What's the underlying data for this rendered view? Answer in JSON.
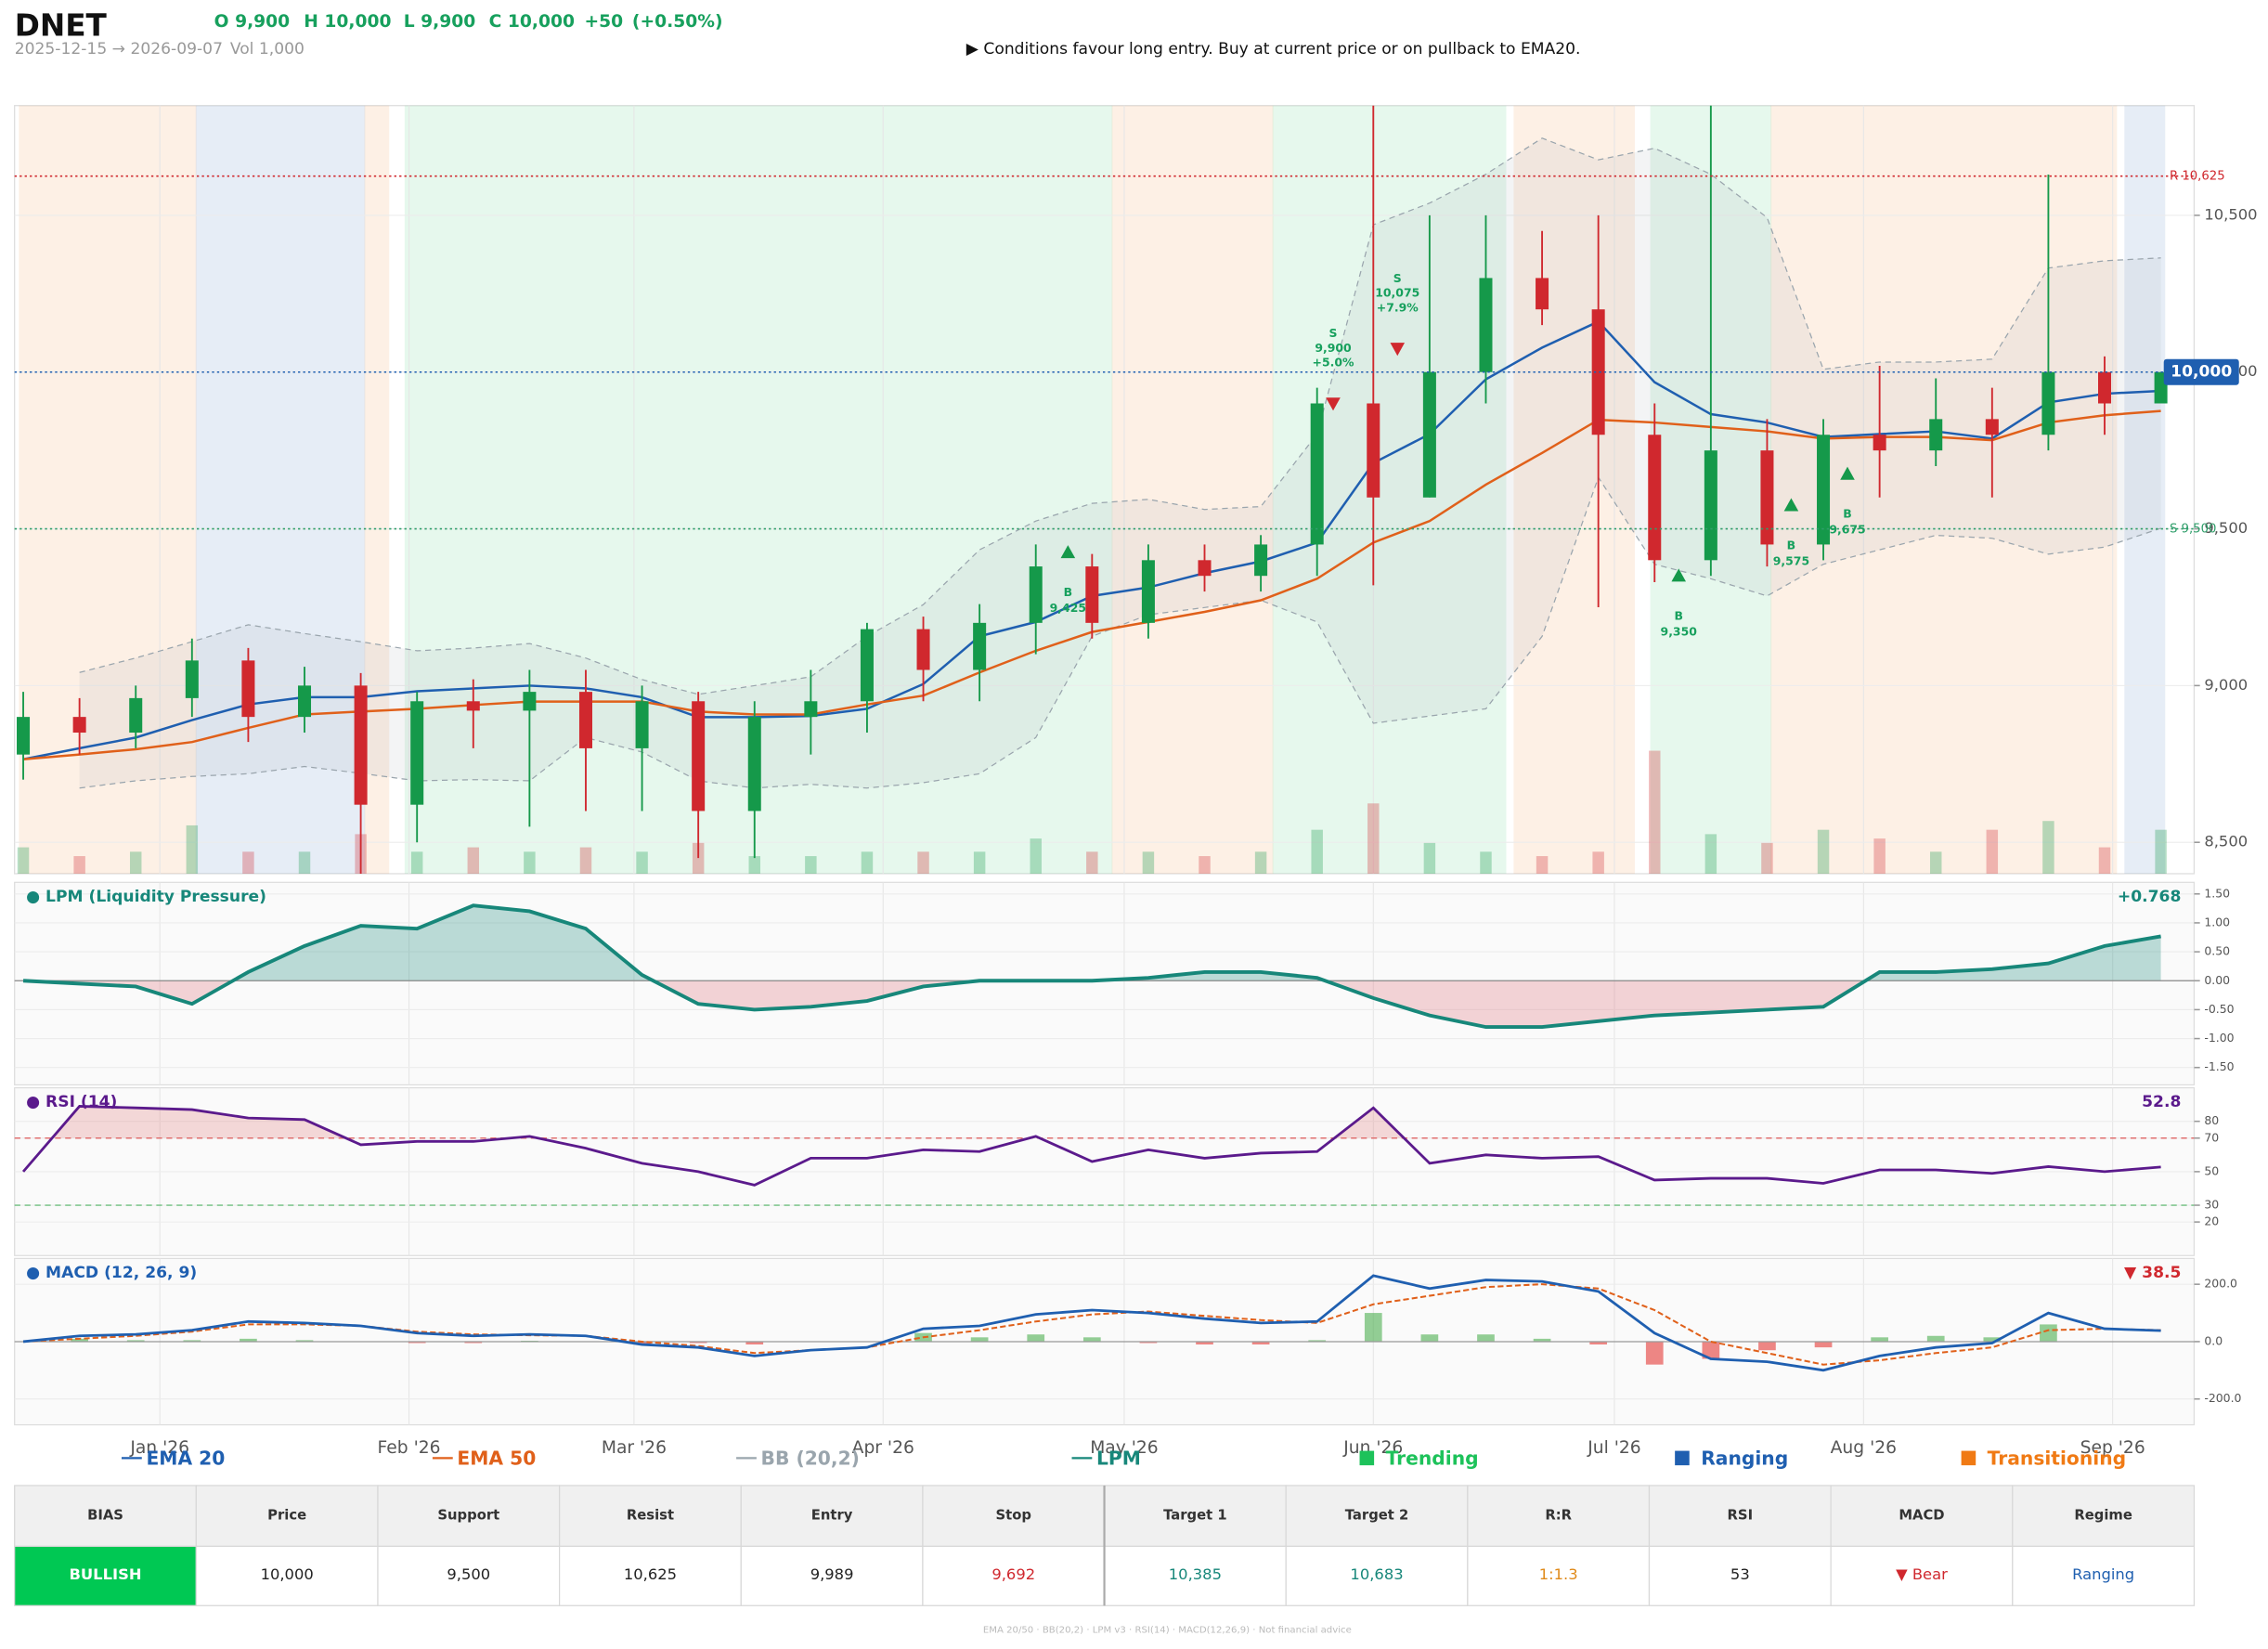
{
  "header": {
    "title": "DNET",
    "ohlc": [
      "O 9,900",
      "H 10,000",
      "L 9,900",
      "C 10,000",
      "+50",
      "(+0.50%)"
    ],
    "range": "2025-12-15 → 2026-09-07",
    "volume": "Vol 1,000",
    "note": "▶  Conditions favour long entry. Buy at current price or on pullback to EMA20."
  },
  "chart_data": [
    {
      "type": "candlestick",
      "xlim": [
        "2025-12-15",
        "2026-09-07"
      ],
      "xticks": [
        {
          "value": "2026-01-01",
          "label": "Jan '26"
        },
        {
          "value": "2026-02-01",
          "label": "Feb '26"
        },
        {
          "value": "2026-03-01",
          "label": "Mar '26"
        },
        {
          "value": "2026-04-01",
          "label": "Apr '26"
        },
        {
          "value": "2026-05-01",
          "label": "May '26"
        },
        {
          "value": "2026-06-01",
          "label": "Jun '26"
        },
        {
          "value": "2026-07-01",
          "label": "Jul '26"
        },
        {
          "value": "2026-08-01",
          "label": "Aug '26"
        },
        {
          "value": "2026-09-01",
          "label": "Sep '26"
        }
      ],
      "ylim": [
        8400,
        10850
      ],
      "yticks": [
        {
          "value": 8500,
          "label": "8,500"
        },
        {
          "value": 9000,
          "label": "9,000"
        },
        {
          "value": 9500,
          "label": "9,500"
        },
        {
          "value": 10000,
          "label": "10,000"
        },
        {
          "value": 10500,
          "label": "10,500"
        }
      ],
      "grid": true,
      "up_color": "#15994a",
      "down_color": "#d0282e",
      "x": [
        "2025-12-15",
        "2025-12-22",
        "2025-12-29",
        "2026-01-05",
        "2026-01-12",
        "2026-01-19",
        "2026-01-26",
        "2026-02-02",
        "2026-02-09",
        "2026-02-16",
        "2026-02-23",
        "2026-03-02",
        "2026-03-09",
        "2026-03-16",
        "2026-03-23",
        "2026-03-30",
        "2026-04-06",
        "2026-04-13",
        "2026-04-20",
        "2026-04-27",
        "2026-05-04",
        "2026-05-11",
        "2026-05-18",
        "2026-05-25",
        "2026-06-01",
        "2026-06-08",
        "2026-06-15",
        "2026-06-22",
        "2026-06-29",
        "2026-07-06",
        "2026-07-13",
        "2026-07-20",
        "2026-07-27",
        "2026-08-03",
        "2026-08-10",
        "2026-08-17",
        "2026-08-24",
        "2026-08-31",
        "2026-09-07"
      ],
      "open": [
        8780,
        8900,
        8850,
        8960,
        9080,
        8900,
        9000,
        8620,
        8950,
        8920,
        8980,
        8800,
        8950,
        8600,
        8900,
        8950,
        9180,
        9050,
        9200,
        9380,
        9200,
        9400,
        9350,
        9450,
        9900,
        9600,
        10000,
        10300,
        10200,
        9800,
        9400,
        9750,
        9450,
        9800,
        9750,
        9850,
        9800,
        10000,
        9900
      ],
      "high": [
        8980,
        8960,
        9000,
        9150,
        9120,
        9060,
        9040,
        8980,
        9020,
        9050,
        9050,
        9000,
        8980,
        8950,
        9050,
        9200,
        9220,
        9260,
        9450,
        9420,
        9450,
        9450,
        9480,
        9950,
        10850,
        10500,
        10500,
        10450,
        10500,
        9900,
        10850,
        9850,
        9850,
        10020,
        9980,
        9950,
        10630,
        10050,
        10000
      ],
      "low": [
        8700,
        8780,
        8800,
        8900,
        8820,
        8850,
        8400,
        8500,
        8800,
        8550,
        8600,
        8600,
        8450,
        8450,
        8780,
        8850,
        8950,
        8950,
        9100,
        9150,
        9150,
        9300,
        9300,
        9350,
        9320,
        9600,
        9900,
        10150,
        9250,
        9330,
        9350,
        9380,
        9400,
        9600,
        9700,
        9600,
        9750,
        9800,
        9900
      ],
      "close": [
        8900,
        8850,
        8960,
        9080,
        8900,
        9000,
        8620,
        8950,
        8920,
        8980,
        8800,
        8950,
        8600,
        8900,
        8950,
        9180,
        9050,
        9200,
        9380,
        9200,
        9400,
        9350,
        9450,
        9900,
        9600,
        10000,
        10300,
        10200,
        9800,
        9400,
        9750,
        9450,
        9800,
        9750,
        9850,
        9800,
        10000,
        9900,
        10000
      ],
      "volume": [
        600,
        400,
        500,
        1100,
        500,
        500,
        900,
        500,
        600,
        500,
        600,
        500,
        700,
        400,
        400,
        500,
        500,
        500,
        800,
        500,
        500,
        400,
        500,
        1000,
        1600,
        700,
        500,
        400,
        500,
        2800,
        900,
        700,
        1000,
        800,
        500,
        1000,
        1200,
        600,
        1000
      ],
      "series": [
        {
          "name": "EMA 20",
          "color": "#1f5fb0",
          "values": [
            8765,
            8800,
            8834,
            8890,
            8940,
            8963,
            8963,
            8982,
            8991,
            9000,
            8991,
            8963,
            8899,
            8899,
            8903,
            8926,
            9005,
            9157,
            9203,
            9286,
            9313,
            9359,
            9396,
            9456,
            9710,
            9802,
            9977,
            10078,
            10161,
            9968,
            9866,
            9839,
            9793,
            9802,
            9811,
            9788,
            9903,
            9931,
            9940
          ]
        },
        {
          "name": "EMA 50",
          "color": "#e0601a",
          "values": [
            8765,
            8780,
            8797,
            8820,
            8865,
            8908,
            8917,
            8926,
            8938,
            8949,
            8949,
            8949,
            8917,
            8908,
            8908,
            8940,
            8968,
            9042,
            9111,
            9171,
            9203,
            9235,
            9272,
            9341,
            9456,
            9525,
            9641,
            9742,
            9848,
            9839,
            9825,
            9811,
            9788,
            9793,
            9793,
            9783,
            9839,
            9862,
            9876
          ]
        }
      ],
      "bands": {
        "name": "BB (20,2)",
        "color": "#9aa5ad",
        "upper": [
          null,
          9042,
          9088,
          9140,
          9194,
          9166,
          9140,
          9111,
          9120,
          9134,
          9088,
          9019,
          8972,
          9000,
          9028,
          9157,
          9258,
          9433,
          9525,
          9581,
          9594,
          9562,
          9571,
          9802,
          10470,
          10539,
          10631,
          10746,
          10677,
          10714,
          10631,
          10493,
          10009,
          10032,
          10032,
          10041,
          10332,
          10355,
          10364
        ],
        "lower": [
          null,
          8673,
          8696,
          8710,
          8719,
          8742,
          8720,
          8696,
          8700,
          8696,
          8834,
          8788,
          8696,
          8673,
          8685,
          8673,
          8690,
          8719,
          8834,
          9157,
          9226,
          9249,
          9272,
          9203,
          8880,
          8903,
          8926,
          9157,
          9664,
          9387,
          9341,
          9286,
          9387,
          9433,
          9479,
          9470,
          9419,
          9442,
          9502
        ]
      },
      "levels": [
        {
          "label": "R 10,625",
          "value": 10625,
          "color": "#d0282e",
          "box": false
        },
        {
          "label": "10,000",
          "value": 10000,
          "color": "#1f5fb0",
          "box": true
        },
        {
          "label": "S 9,500",
          "value": 9500,
          "color": "#2f9e6a",
          "box": false
        }
      ],
      "signals": [
        {
          "side": "S",
          "date": "2026-05-27",
          "price": 9900,
          "price_label": "9,900",
          "change": "+5.0%"
        },
        {
          "side": "S",
          "date": "2026-06-04",
          "price": 10075,
          "price_label": "10,075",
          "change": "+7.9%"
        },
        {
          "side": "B",
          "date": "2026-04-24",
          "price": 9425,
          "price_label": "9,425"
        },
        {
          "side": "B",
          "date": "2026-07-09",
          "price": 9350,
          "price_label": "9,350"
        },
        {
          "side": "B",
          "date": "2026-07-23",
          "price": 9575,
          "price_label": "9,575"
        },
        {
          "side": "B",
          "date": "2026-07-30",
          "price": 9675,
          "price_label": "9,675"
        }
      ],
      "regime_legend": [
        {
          "name": "Trending",
          "color": "#1dc25a"
        },
        {
          "name": "Ranging",
          "color": "#1f5fb0"
        },
        {
          "name": "Transitioning",
          "color": "#f07a14"
        }
      ],
      "regimes": [
        {
          "start": "2025-12-15",
          "end": "2026-01-05",
          "name": "Transitioning"
        },
        {
          "start": "2026-01-06",
          "end": "2026-01-26",
          "name": "Ranging"
        },
        {
          "start": "2026-01-27",
          "end": "2026-01-29",
          "name": "Transitioning"
        },
        {
          "start": "2026-02-01",
          "end": "2026-04-29",
          "name": "Trending"
        },
        {
          "start": "2026-04-30",
          "end": "2026-05-19",
          "name": "Transitioning"
        },
        {
          "start": "2026-05-20",
          "end": "2026-06-17",
          "name": "Trending"
        },
        {
          "start": "2026-06-19",
          "end": "2026-07-03",
          "name": "Transitioning"
        },
        {
          "start": "2026-07-06",
          "end": "2026-07-20",
          "name": "Trending"
        },
        {
          "start": "2026-07-21",
          "end": "2026-09-01",
          "name": "Transitioning"
        },
        {
          "start": "2026-09-03",
          "end": "2026-09-07",
          "name": "Ranging"
        }
      ]
    },
    {
      "type": "area",
      "title": "● LPM (Liquidity Pressure)",
      "current_label": "+0.768",
      "ylim": [
        -1.8,
        1.7
      ],
      "yticks": [
        {
          "value": 1.5,
          "label": "1.50"
        },
        {
          "value": 1,
          "label": "1.00"
        },
        {
          "value": 0.5,
          "label": "0.50"
        },
        {
          "value": 0,
          "label": "0.00"
        },
        {
          "value": -0.5,
          "label": "-0.50"
        },
        {
          "value": -1,
          "label": "-1.00"
        },
        {
          "value": -1.5,
          "label": "-1.50"
        }
      ],
      "positive_color": "#17877a",
      "negative_color": "#e06b78",
      "series": [
        {
          "name": "LPM",
          "color": "#17877a",
          "values": [
            0,
            -0.05,
            -0.1,
            -0.4,
            0.15,
            0.6,
            0.95,
            0.9,
            1.3,
            1.2,
            0.9,
            0.1,
            -0.4,
            -0.5,
            -0.45,
            -0.35,
            -0.1,
            0,
            0,
            0,
            0.05,
            0.15,
            0.15,
            0.05,
            -0.3,
            -0.6,
            -0.8,
            -0.8,
            -0.7,
            -0.6,
            -0.55,
            -0.5,
            -0.45,
            0.15,
            0.15,
            0.2,
            0.3,
            0.6,
            0.768
          ]
        }
      ]
    },
    {
      "type": "line",
      "title": "● RSI (14)",
      "current_label": "52.8",
      "ylim": [
        0,
        100
      ],
      "yticks": [
        80,
        70,
        50,
        30,
        20
      ],
      "levels": [
        {
          "value": 70,
          "color": "#e07070"
        },
        {
          "value": 30,
          "color": "#6fbf7f"
        }
      ],
      "series": [
        {
          "name": "RSI",
          "color": "#5b1a8c",
          "values": [
            50,
            89,
            88,
            87,
            82,
            81,
            66,
            68,
            68,
            71,
            64,
            55,
            50,
            42,
            58,
            58,
            63,
            62,
            71,
            56,
            63,
            58,
            61,
            62,
            88,
            55,
            60,
            58,
            59,
            45,
            46,
            46,
            43,
            51,
            51,
            49,
            53,
            50,
            52.8
          ]
        }
      ]
    },
    {
      "type": "macd",
      "title": "● MACD (12, 26, 9)",
      "current_label": "▼ 38.5",
      "ylim": [
        -290,
        290
      ],
      "yticks": [
        {
          "value": 200,
          "label": "200.0"
        },
        {
          "value": 0,
          "label": "0.0"
        },
        {
          "value": -200,
          "label": "-200.0"
        }
      ],
      "series": [
        {
          "name": "MACD",
          "color": "#1f5fb0",
          "values": [
            0,
            20,
            25,
            40,
            70,
            65,
            55,
            30,
            20,
            25,
            20,
            -10,
            -20,
            -50,
            -30,
            -20,
            45,
            55,
            95,
            110,
            100,
            80,
            65,
            70,
            230,
            185,
            215,
            210,
            175,
            30,
            -60,
            -70,
            -100,
            -50,
            -20,
            -5,
            100,
            45,
            38.5
          ]
        },
        {
          "name": "Signal",
          "color": "#e0601a",
          "values": [
            0,
            10,
            20,
            35,
            60,
            60,
            55,
            35,
            25,
            22,
            20,
            0,
            -15,
            -40,
            -30,
            -20,
            15,
            40,
            70,
            95,
            105,
            90,
            75,
            65,
            130,
            160,
            190,
            200,
            185,
            110,
            0,
            -40,
            -80,
            -65,
            -40,
            -20,
            40,
            45,
            40
          ]
        }
      ],
      "histogram": {
        "up_color": "#4caf50",
        "down_color": "#e53935",
        "values": [
          0,
          10,
          5,
          5,
          10,
          5,
          0,
          -5,
          -5,
          3,
          0,
          -10,
          -5,
          -10,
          0,
          0,
          30,
          15,
          25,
          15,
          -5,
          -10,
          -10,
          5,
          100,
          25,
          25,
          10,
          -10,
          -80,
          -60,
          -30,
          -20,
          15,
          20,
          15,
          60,
          0,
          -1.5
        ]
      }
    }
  ],
  "table": {
    "headers": [
      "BIAS",
      "Price",
      "Support",
      "Resist",
      "Entry",
      "Stop",
      "Target 1",
      "Target 2",
      "R:R",
      "RSI",
      "MACD",
      "Regime"
    ],
    "rows": [
      [
        "BULLISH",
        "10,000",
        "9,500",
        "10,625",
        "9,989",
        "9,692",
        "10,385",
        "10,683",
        "1:1.3",
        "53",
        "▼ Bear",
        "Ranging"
      ]
    ],
    "colors": [
      [
        "#ffffff",
        "#222222",
        "#222222",
        "#222222",
        "#222222",
        "#d0282e",
        "#17877a",
        "#17877a",
        "#e08a1a",
        "#222222",
        "#d0282e",
        "#1f5fb0"
      ]
    ],
    "bias_fill": "#00c853"
  },
  "footer": "EMA 20/50  ·  BB(20,2)  ·  LPM v3  ·  RSI(14)  ·  MACD(12,26,9)  ·  Not financial advice"
}
